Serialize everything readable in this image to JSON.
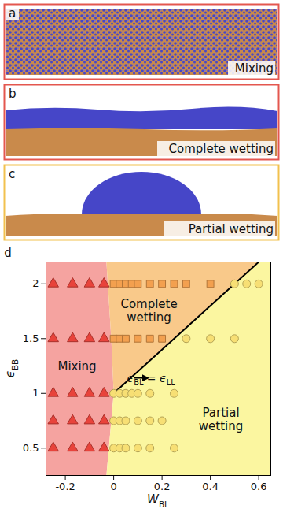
{
  "snapshots": [
    {
      "letter": "a",
      "label": "Mixing",
      "color": "#e4574f"
    },
    {
      "letter": "b",
      "label": "Complete wetting",
      "color": "#e4574f"
    },
    {
      "letter": "c",
      "label": "Partial wetting",
      "color": "#f2c14e"
    }
  ],
  "chart_data": {
    "type": "scatter",
    "letter": "d",
    "x_label": "WBL",
    "y_label": "ϵBB",
    "xlim": [
      -0.28,
      0.65
    ],
    "xticks": [
      -0.2,
      0,
      0.2,
      0.4,
      0.6
    ],
    "ylim": [
      0.25,
      2.2
    ],
    "yticks": [
      0.5,
      1,
      1.5,
      2
    ],
    "regions": [
      {
        "label": "Mixing",
        "color": "#f5a3a0",
        "x": [
          -0.28,
          -0.03,
          -0.01,
          0,
          -0.01,
          -0.03,
          -0.28
        ],
        "y": [
          0.25,
          0.25,
          0.75,
          1,
          1.5,
          2.2,
          2.2
        ]
      },
      {
        "label": "Complete wetting",
        "color": "#f9c98a",
        "x": [
          -0.03,
          -0.01,
          0,
          0.6
        ],
        "y": [
          2.2,
          1.5,
          1,
          2.2
        ]
      },
      {
        "label": "Partial wetting",
        "color": "#fbf6a0",
        "x": [
          -0.03,
          0.65,
          0.65,
          0.6,
          0,
          -0.01
        ],
        "y": [
          0.25,
          0.25,
          2.2,
          2.2,
          1,
          0.75
        ]
      }
    ],
    "line": {
      "x": [
        0,
        0.6
      ],
      "y": [
        1,
        2.2
      ],
      "color": "#000000"
    },
    "annotation": "ϵBL = ϵLL",
    "series": [
      {
        "marker": "triangle",
        "color": "#e8433b",
        "x": [
          -0.25,
          -0.17,
          -0.1,
          -0.04,
          -0.25,
          -0.17,
          -0.1,
          -0.04,
          -0.25,
          -0.17,
          -0.1,
          -0.04,
          -0.25,
          -0.17,
          -0.1,
          -0.04,
          -0.25,
          -0.17,
          -0.1,
          -0.04
        ],
        "y": [
          2,
          2,
          2,
          2,
          1.5,
          1.5,
          1.5,
          1.5,
          1,
          1,
          1,
          1,
          0.75,
          0.75,
          0.75,
          0.75,
          0.5,
          0.5,
          0.5,
          0.5
        ]
      },
      {
        "marker": "square",
        "color": "#f3a04f",
        "x": [
          0,
          0.025,
          0.05,
          0.075,
          0.1,
          0.15,
          0.2,
          0.25,
          0.3,
          0.4,
          0,
          0.025,
          0.05,
          0.1,
          0.15,
          0.2
        ],
        "y": [
          2,
          2,
          2,
          2,
          2,
          2,
          2,
          2,
          2,
          2,
          1.5,
          1.5,
          1.5,
          1.5,
          1.5,
          1.5
        ]
      },
      {
        "marker": "circle",
        "color": "#f7df74",
        "x": [
          0.5,
          0.55,
          0.6,
          0.3,
          0.4,
          0.5,
          0,
          0.025,
          0.05,
          0.075,
          0.1,
          0.15,
          0.25,
          0,
          0.025,
          0.05,
          0.1,
          0.15,
          0.2,
          0,
          0.025,
          0.05,
          0.1,
          0.15,
          0.25
        ],
        "y": [
          2,
          2,
          2,
          1.5,
          1.5,
          1.5,
          1,
          1,
          1,
          1,
          1,
          1,
          1,
          0.75,
          0.75,
          0.75,
          0.75,
          0.75,
          0.75,
          0.5,
          0.5,
          0.5,
          0.5,
          0.5,
          0.5
        ]
      }
    ]
  }
}
